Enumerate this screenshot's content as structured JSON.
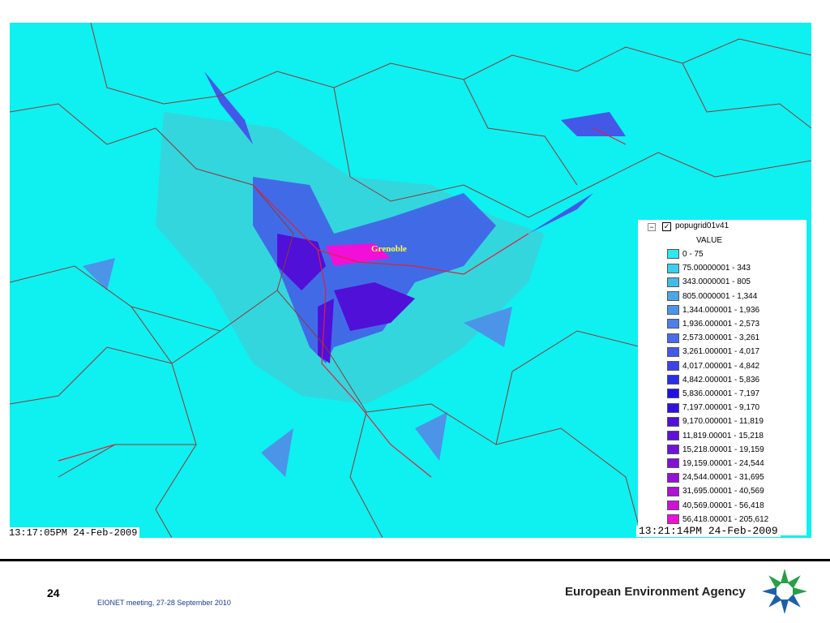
{
  "map": {
    "label": "Grenoble",
    "timestamp_left": "13:17:05PM 24-Feb-2009",
    "timestamp_right": "13:21:14PM 24-Feb-2009",
    "legend": {
      "layer": "popugrid01v41",
      "field": "VALUE",
      "items": [
        {
          "label": "0 - 75",
          "color": "#2ee8f0"
        },
        {
          "label": "75.00000001 - 343",
          "color": "#38d0ee"
        },
        {
          "label": "343.0000001 - 805",
          "color": "#40bce8"
        },
        {
          "label": "805.0000001 - 1,344",
          "color": "#4aa8e8"
        },
        {
          "label": "1,344.000001 - 1,936",
          "color": "#4c94e8"
        },
        {
          "label": "1,936.000001 - 2,573",
          "color": "#4c80e8"
        },
        {
          "label": "2,573.000001 - 3,261",
          "color": "#4a6ce8"
        },
        {
          "label": "3,261.000001 - 4,017",
          "color": "#4458e8"
        },
        {
          "label": "4,017.000001 - 4,842",
          "color": "#3c44e8"
        },
        {
          "label": "4,842.000001 - 5,836",
          "color": "#2a2ee8"
        },
        {
          "label": "5,836.000001 - 7,197",
          "color": "#2010e8"
        },
        {
          "label": "7,197.000001 - 9,170",
          "color": "#3010e0"
        },
        {
          "label": "9,170.000001 - 11,819",
          "color": "#5010d8"
        },
        {
          "label": "11,819.00001 - 15,218",
          "color": "#6010d8"
        },
        {
          "label": "15,218.00001 - 19,159",
          "color": "#7010d8"
        },
        {
          "label": "19,159.00001 - 24,544",
          "color": "#8410d8"
        },
        {
          "label": "24,544.00001 - 31,695",
          "color": "#9810d8"
        },
        {
          "label": "31,695.00001 - 40,569",
          "color": "#b010d8"
        },
        {
          "label": "40,569.00001 - 56,418",
          "color": "#d010d8"
        },
        {
          "label": "56,418.00001 - 205,612",
          "color": "#f010d8"
        }
      ]
    }
  },
  "footer": {
    "page": "24",
    "meeting": "EIONET meeting, 27-28 September 2010",
    "agency": "European Environment Agency"
  }
}
